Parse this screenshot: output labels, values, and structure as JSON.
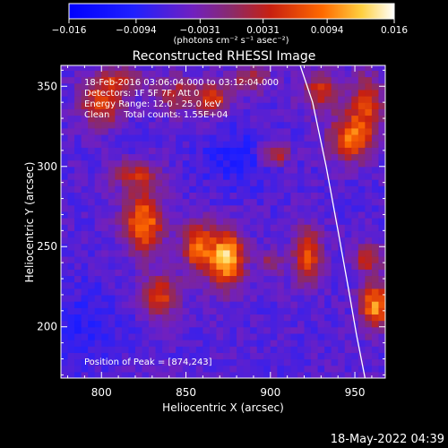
{
  "chart_data": {
    "type": "heatmap",
    "title": "Reconstructed RHESSI Image",
    "xlabel": "Heliocentric X (arcsec)",
    "ylabel": "Heliocentric Y (arcsec)",
    "xlim": [
      776,
      968
    ],
    "ylim": [
      168,
      363
    ],
    "xticks": [
      800,
      850,
      900,
      950
    ],
    "yticks": [
      200,
      250,
      300,
      350
    ],
    "colorbar": {
      "min": -0.016,
      "max": 0.016,
      "tick_values": [
        -0.016,
        -0.0094,
        -0.0031,
        0.0031,
        0.0094,
        0.016
      ],
      "tick_labels": [
        "−0.016",
        "−0.0094",
        "−0.0031",
        "0.0031",
        "0.0094",
        "0.016"
      ],
      "unit_label": "(photons cm⁻² s⁻¹ asec⁻²)"
    },
    "annotations": [
      "18-Feb-2016 03:06:04.000 to 03:12:04.000",
      "Detectors: 1F 5F 7F, Att 0",
      "Energy Range: 12.0 - 25.0 keV",
      "Clean     Total counts: 1.55E+04"
    ],
    "peak_label": "Position of Peak = [874,243]",
    "peak_position": [
      874,
      243
    ],
    "sources": [
      {
        "x": 874,
        "y": 243,
        "sx": 7,
        "sy": 12,
        "amp": 1.0
      },
      {
        "x": 857,
        "y": 250,
        "sx": 6,
        "sy": 11,
        "amp": 0.72
      },
      {
        "x": 825,
        "y": 265,
        "sx": 8,
        "sy": 13,
        "amp": 0.78
      },
      {
        "x": 835,
        "y": 220,
        "sx": 8,
        "sy": 9,
        "amp": 0.55
      },
      {
        "x": 820,
        "y": 295,
        "sx": 10,
        "sy": 6,
        "amp": 0.45
      },
      {
        "x": 800,
        "y": 340,
        "sx": 9,
        "sy": 10,
        "amp": 0.58
      },
      {
        "x": 812,
        "y": 355,
        "sx": 8,
        "sy": 5,
        "amp": 0.45
      },
      {
        "x": 845,
        "y": 345,
        "sx": 10,
        "sy": 8,
        "amp": 0.4
      },
      {
        "x": 867,
        "y": 343,
        "sx": 7,
        "sy": 7,
        "amp": 0.5
      },
      {
        "x": 888,
        "y": 355,
        "sx": 8,
        "sy": 6,
        "amp": 0.4
      },
      {
        "x": 903,
        "y": 308,
        "sx": 6,
        "sy": 5,
        "amp": 0.5
      },
      {
        "x": 922,
        "y": 245,
        "sx": 6,
        "sy": 12,
        "amp": 0.62
      },
      {
        "x": 948,
        "y": 318,
        "sx": 9,
        "sy": 10,
        "amp": 0.7
      },
      {
        "x": 930,
        "y": 347,
        "sx": 8,
        "sy": 8,
        "amp": 0.5
      },
      {
        "x": 957,
        "y": 340,
        "sx": 7,
        "sy": 12,
        "amp": 0.55
      },
      {
        "x": 962,
        "y": 213,
        "sx": 6,
        "sy": 10,
        "amp": 0.8
      },
      {
        "x": 958,
        "y": 243,
        "sx": 6,
        "sy": 6,
        "amp": 0.5
      },
      {
        "x": 900,
        "y": 240,
        "sx": 5,
        "sy": 6,
        "amp": 0.3
      }
    ],
    "limb_curve": [
      [
        916,
        368
      ],
      [
        925,
        340
      ],
      [
        933,
        300
      ],
      [
        940,
        260
      ],
      [
        946,
        225
      ],
      [
        951,
        195
      ],
      [
        956,
        168
      ]
    ],
    "grid": false
  },
  "footer": {
    "date": "18-May-2022 04:39"
  }
}
